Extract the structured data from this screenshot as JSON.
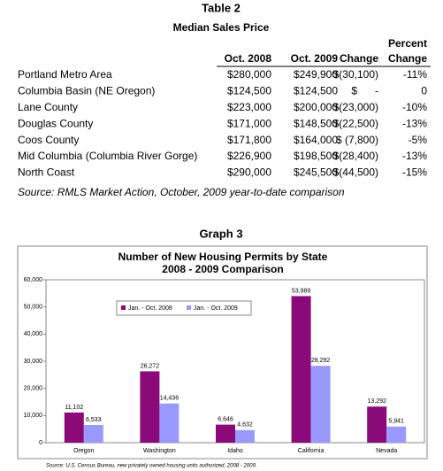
{
  "table": {
    "title": "Table 2",
    "subtitle": "Median Sales Price",
    "header": {
      "columns": [
        "Oct. 2008",
        "Oct. 2009",
        "Change"
      ],
      "percent": [
        "Percent",
        "Change"
      ]
    },
    "rows": [
      [
        "Portland Metro Area",
        "$280,000",
        "$249,900",
        "$(30,100)",
        "-11%"
      ],
      [
        "Columbia Basin (NE Oregon)",
        "$124,500",
        "$124,500",
        "$      -",
        "0"
      ],
      [
        "Lane County",
        "$223,000",
        "$200,000",
        "$(23,000)",
        "-10%"
      ],
      [
        "Douglas County",
        "$171,000",
        "$148,500",
        "$(22,500)",
        "-13%"
      ],
      [
        "Coos County",
        "$171,800",
        "$164,000",
        "$ (7,800)",
        "-5%"
      ],
      [
        "Mid Columbia (Columbia River Gorge)",
        "$226,900",
        "$198,500",
        "$(28,400)",
        "-13%"
      ],
      [
        "North Coast",
        "$290,000",
        "$245,500",
        "$(44,500)",
        "-15%"
      ]
    ],
    "source": "Source: RMLS Market Action, October, 2009 year-to-date comparison"
  },
  "graph_title": "Graph 3",
  "chart_data": {
    "type": "bar",
    "title": [
      "Number of New Housing Permits by State",
      "2008 - 2009 Comparison"
    ],
    "categories": [
      "Oregon",
      "Washington",
      "Idaho",
      "California",
      "Nevada"
    ],
    "series": [
      {
        "name": "Jan. - Oct. 2008",
        "color": "#8b0a7a",
        "values": [
          11102,
          26272,
          6646,
          53989,
          13292
        ],
        "value_labels": [
          "11,102",
          "26,272",
          "6,646",
          "53,989",
          "13,292"
        ]
      },
      {
        "name": "Jan. - Oct. 2009",
        "color": "#9999ff",
        "values": [
          6533,
          14436,
          4632,
          28292,
          5941
        ],
        "value_labels": [
          "6,533",
          "14,436",
          "4,632",
          "28,292",
          "5,941"
        ]
      }
    ],
    "ylim": [
      0,
      60000
    ],
    "yticks": [
      0,
      {
        "value": 10000,
        "label": "10,000"
      },
      {
        "value": 20000,
        "label": "20,000"
      },
      {
        "value": 30000,
        "label": "30,000"
      },
      {
        "value": 40000,
        "label": "40,000"
      },
      {
        "value": 50000,
        "label": "50,000"
      },
      {
        "value": 60000,
        "label": "60,000"
      }
    ],
    "legend": "upper left",
    "source": "Source: U.S. Census Bureau, new privately owned housing units authorized, 2008 - 2009."
  }
}
